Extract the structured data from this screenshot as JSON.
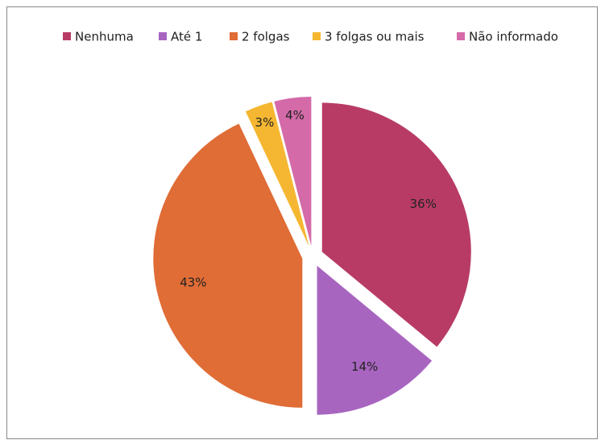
{
  "chart_data": {
    "type": "pie",
    "categories": [
      "Nenhuma",
      "Até 1",
      "2 folgas",
      "3 folgas ou mais",
      "Não informado"
    ],
    "values": [
      36,
      14,
      43,
      3,
      4
    ],
    "value_labels": [
      "36%",
      "14%",
      "43%",
      "3%",
      "4%"
    ],
    "colors": [
      "#b83b65",
      "#a865c0",
      "#e06c36",
      "#f5b731",
      "#d46aa8"
    ],
    "legend": "top"
  }
}
